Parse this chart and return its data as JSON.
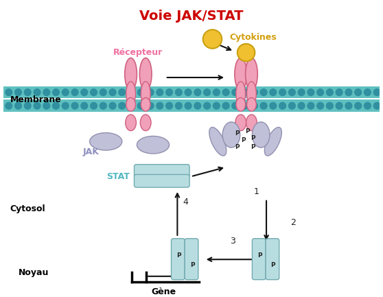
{
  "title": "Voie JAK/STAT",
  "title_color": "#cc0000",
  "title_fontsize": 14,
  "receptor_color": "#f0a0b8",
  "receptor_edge": "#d06080",
  "jak_color": "#c0c0d8",
  "jak_edge": "#9090b0",
  "cytokine_color": "#f0c030",
  "cytokine_edge": "#c8a010",
  "stat_color": "#b8dde0",
  "stat_edge": "#70aab0",
  "membrane_fill": "#60c0c0",
  "membrane_dot": "#3090a0",
  "nucleus_color": "#e8a020",
  "arrow_color": "#111111",
  "label_membrane": "Membrane",
  "label_cytosol": "Cytosol",
  "label_noyau": "Noyau",
  "label_recepteur": "Récepteur",
  "label_cytokines": "Cytokines",
  "label_jak": "JAK",
  "label_stat": "STAT",
  "label_gene": "Gène"
}
